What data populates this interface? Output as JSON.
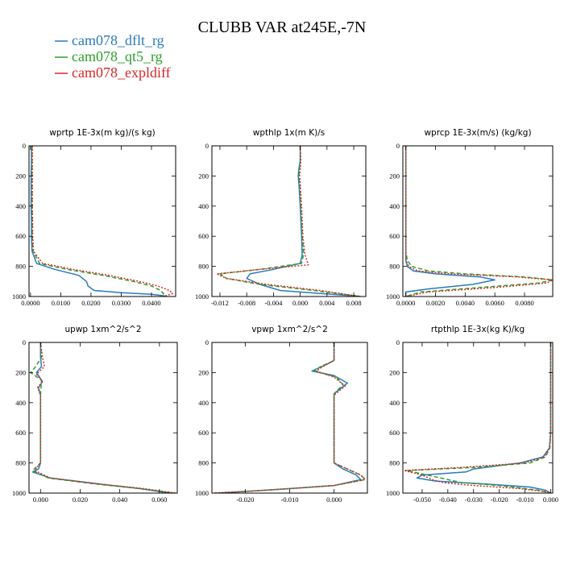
{
  "figure": {
    "title": "CLUBB VAR at245E,-7N",
    "legend": [
      {
        "name": "cam078_dflt_rg",
        "color": "#2b7bb9",
        "dash": "solid"
      },
      {
        "name": "cam078_qt5_rg",
        "color": "#2ca02c",
        "dash": "dashed"
      },
      {
        "name": "cam078_expldiff",
        "color": "#d62728",
        "dash": "dotted"
      }
    ]
  },
  "chart_data": [
    {
      "type": "line",
      "title": "wprtp   1E-3x(m kg)/(s kg)",
      "xlim": [
        -0.0005,
        0.048
      ],
      "ylim": [
        0,
        1000
      ],
      "y_inverted": true,
      "xticks": [
        0.0,
        0.01,
        0.02,
        0.03,
        0.04
      ],
      "xtick_labels": [
        "0.0000",
        "0.0100",
        "0.0200",
        "0.0300",
        "0.0400"
      ],
      "yticks": [
        0,
        200,
        400,
        600,
        800,
        1000
      ],
      "ytick_labels": [
        "0",
        "200",
        "400",
        "600",
        "800",
        "1000"
      ],
      "series": [
        {
          "name": "cam078_dflt_rg",
          "x": [
            0.0003,
            0.0003,
            0.0002,
            0.0002,
            0.0002,
            0.0003,
            0.0003,
            0.0005,
            0.002,
            0.008,
            0.016,
            0.0185,
            0.019,
            0.021,
            0.03,
            0.04,
            0.044,
            0.045
          ],
          "y": [
            0,
            100,
            200,
            300,
            400,
            500,
            600,
            700,
            780,
            820,
            860,
            900,
            930,
            960,
            975,
            985,
            995,
            1000
          ]
        },
        {
          "name": "cam078_qt5_rg",
          "x": [
            0.0005,
            0.0005,
            0.0005,
            0.0005,
            0.0005,
            0.0006,
            0.0006,
            0.0008,
            0.003,
            0.012,
            0.024,
            0.034,
            0.04,
            0.043,
            0.044,
            0.043
          ],
          "y": [
            0,
            100,
            200,
            300,
            400,
            500,
            600,
            700,
            780,
            820,
            860,
            900,
            930,
            960,
            980,
            1000
          ]
        },
        {
          "name": "cam078_expldiff",
          "x": [
            0.0006,
            0.0006,
            0.0006,
            0.0006,
            0.0006,
            0.0007,
            0.0007,
            0.001,
            0.004,
            0.014,
            0.026,
            0.036,
            0.042,
            0.046,
            0.047,
            0.044
          ],
          "y": [
            0,
            100,
            200,
            300,
            400,
            500,
            600,
            700,
            780,
            820,
            860,
            900,
            930,
            960,
            980,
            1000
          ]
        }
      ]
    },
    {
      "type": "line",
      "title": "wpthlp   1x(m K)/s",
      "xlim": [
        -0.0132,
        0.0098
      ],
      "ylim": [
        0,
        1000
      ],
      "y_inverted": true,
      "xticks": [
        -0.012,
        -0.008,
        -0.004,
        0.0,
        0.004,
        0.008
      ],
      "xtick_labels": [
        "-0.012",
        "-0.008",
        "-0.004",
        "0.000",
        "0.004",
        "0.008"
      ],
      "yticks": [
        0,
        200,
        400,
        600,
        800,
        1000
      ],
      "ytick_labels": [
        "0",
        "200",
        "400",
        "600",
        "800",
        "1000"
      ],
      "series": [
        {
          "name": "cam078_dflt_rg",
          "x": [
            0.0,
            0.0,
            -0.0002,
            -0.0003,
            -0.0002,
            0.0,
            0.0002,
            0.0003,
            0.0,
            -0.004,
            -0.0075,
            -0.008,
            -0.006,
            -0.003,
            0.003,
            0.008,
            0.009
          ],
          "y": [
            0,
            100,
            150,
            200,
            250,
            400,
            600,
            720,
            780,
            820,
            850,
            880,
            920,
            960,
            980,
            995,
            1000
          ]
        },
        {
          "name": "cam078_qt5_rg",
          "x": [
            0.0,
            0.0,
            -0.0001,
            -0.0002,
            -0.0001,
            0.0001,
            0.0003,
            0.0005,
            0.0002,
            -0.006,
            -0.012,
            -0.011,
            -0.006,
            0.002,
            0.009
          ],
          "y": [
            0,
            100,
            150,
            200,
            250,
            400,
            600,
            720,
            780,
            820,
            850,
            880,
            920,
            960,
            1000
          ]
        },
        {
          "name": "cam078_expldiff",
          "x": [
            0.0,
            0.0001,
            0.0,
            -0.0001,
            0.0,
            0.0002,
            0.0004,
            0.0007,
            0.0012,
            -0.006,
            -0.0125,
            -0.011,
            -0.005,
            0.003,
            0.009
          ],
          "y": [
            0,
            100,
            150,
            200,
            250,
            400,
            600,
            720,
            790,
            820,
            850,
            880,
            920,
            960,
            1000
          ]
        }
      ]
    },
    {
      "type": "line",
      "title": "wprcp   1E-3x(m/s) (kg/kg)",
      "xlim": [
        -0.0002,
        0.0099
      ],
      "ylim": [
        0,
        1000
      ],
      "y_inverted": true,
      "xticks": [
        0.0,
        0.002,
        0.004,
        0.006,
        0.008
      ],
      "xtick_labels": [
        "0.0000",
        "0.0020",
        "0.0040",
        "0.0060",
        "0.0080"
      ],
      "yticks": [
        0,
        200,
        400,
        600,
        800,
        1000
      ],
      "ytick_labels": [
        "0",
        "200",
        "400",
        "600",
        "800",
        "1000"
      ],
      "series": [
        {
          "name": "cam078_dflt_rg",
          "x": [
            0.0,
            0.0,
            0.0,
            0.0,
            0.0,
            0.0,
            0.0001,
            0.0005,
            0.002,
            0.005,
            0.006,
            0.0045,
            0.0015,
            0.0,
            0.0
          ],
          "y": [
            0,
            100,
            300,
            500,
            700,
            760,
            800,
            830,
            850,
            870,
            890,
            920,
            950,
            970,
            1000
          ]
        },
        {
          "name": "cam078_qt5_rg",
          "x": [
            0.0,
            0.0,
            0.0,
            0.0,
            0.0,
            0.0001,
            0.0004,
            0.0015,
            0.004,
            0.008,
            0.0099,
            0.009,
            0.005,
            0.001,
            0.0
          ],
          "y": [
            0,
            100,
            300,
            500,
            700,
            760,
            800,
            830,
            850,
            870,
            890,
            910,
            940,
            970,
            1000
          ]
        },
        {
          "name": "cam078_expldiff",
          "x": [
            0.0,
            0.0,
            0.0,
            0.0,
            0.0,
            0.0,
            0.0002,
            0.0008,
            0.003,
            0.0075,
            0.0099,
            0.0095,
            0.006,
            0.0015,
            0.0
          ],
          "y": [
            0,
            100,
            300,
            500,
            700,
            760,
            800,
            830,
            850,
            870,
            890,
            910,
            940,
            970,
            1000
          ]
        }
      ]
    },
    {
      "type": "line",
      "title": "upwp   1xm^2/s^2",
      "xlim": [
        -0.0058,
        0.069
      ],
      "ylim": [
        0,
        1000
      ],
      "y_inverted": true,
      "xticks": [
        0.0,
        0.02,
        0.04,
        0.06
      ],
      "xtick_labels": [
        "0.000",
        "0.020",
        "0.040",
        "0.060"
      ],
      "yticks": [
        0,
        200,
        400,
        600,
        800,
        1000
      ],
      "ytick_labels": [
        "0",
        "200",
        "400",
        "600",
        "800",
        "1000"
      ],
      "series": [
        {
          "name": "cam078_dflt_rg",
          "x": [
            0.0,
            0.0,
            0.0005,
            -0.002,
            0.001,
            -0.001,
            0.0,
            0.0,
            0.0,
            0.0,
            -0.001,
            -0.004,
            0.005,
            0.03,
            0.05,
            0.06,
            0.065
          ],
          "y": [
            0,
            100,
            160,
            200,
            260,
            300,
            350,
            500,
            700,
            800,
            840,
            860,
            900,
            940,
            970,
            990,
            1000
          ]
        },
        {
          "name": "cam078_qt5_rg",
          "x": [
            0.0,
            0.0005,
            -0.003,
            -0.005,
            0.0005,
            0.0,
            0.0,
            0.0,
            0.0,
            -0.004,
            0.004,
            0.028,
            0.05,
            0.068
          ],
          "y": [
            0,
            100,
            170,
            200,
            250,
            350,
            500,
            700,
            800,
            850,
            900,
            940,
            970,
            1000
          ]
        },
        {
          "name": "cam078_expldiff",
          "x": [
            0.0,
            0.001,
            0.002,
            -0.002,
            0.001,
            -0.0015,
            0.0,
            0.0,
            0.0,
            0.0,
            -0.003,
            0.005,
            0.03,
            0.052,
            0.068
          ],
          "y": [
            0,
            100,
            160,
            210,
            260,
            300,
            350,
            500,
            700,
            800,
            850,
            900,
            940,
            970,
            1000
          ]
        }
      ]
    },
    {
      "type": "line",
      "title": "vpwp   1xm^2/s^2",
      "xlim": [
        -0.0275,
        0.0075
      ],
      "ylim": [
        0,
        1000
      ],
      "y_inverted": true,
      "xticks": [
        -0.02,
        -0.01,
        0.0
      ],
      "xtick_labels": [
        "-0.020",
        "-0.010",
        "0.000"
      ],
      "yticks": [
        0,
        200,
        400,
        600,
        800,
        1000
      ],
      "ytick_labels": [
        "0",
        "200",
        "400",
        "600",
        "800",
        "1000"
      ],
      "series": [
        {
          "name": "cam078_dflt_rg",
          "x": [
            0.0,
            0.0,
            -0.002,
            -0.005,
            0.0,
            0.003,
            0.0,
            0.0,
            0.0,
            0.0,
            0.002,
            0.005,
            0.006,
            0.0,
            -0.015,
            -0.026
          ],
          "y": [
            0,
            120,
            150,
            190,
            220,
            270,
            340,
            500,
            700,
            800,
            840,
            880,
            910,
            950,
            980,
            1000
          ]
        },
        {
          "name": "cam078_qt5_rg",
          "x": [
            0.0,
            0.0,
            -0.003,
            -0.0045,
            0.0005,
            0.002,
            0.0,
            0.0,
            0.0,
            0.0,
            0.003,
            0.006,
            0.007,
            0.0,
            -0.015,
            -0.027
          ],
          "y": [
            0,
            120,
            160,
            190,
            230,
            280,
            340,
            500,
            700,
            800,
            840,
            880,
            910,
            950,
            980,
            1000
          ]
        },
        {
          "name": "cam078_expldiff",
          "x": [
            0.0,
            0.0,
            -0.0025,
            -0.004,
            0.0,
            0.0025,
            0.0,
            0.0,
            0.0,
            0.0,
            0.003,
            0.006,
            0.007,
            0.0,
            -0.015,
            -0.027
          ],
          "y": [
            0,
            120,
            160,
            190,
            230,
            290,
            350,
            500,
            700,
            800,
            840,
            880,
            910,
            950,
            980,
            1000
          ]
        }
      ]
    },
    {
      "type": "line",
      "title": "rtpthlp   1E-3x(kg K)/kg",
      "xlim": [
        -0.0575,
        0.0008
      ],
      "ylim": [
        0,
        1000
      ],
      "y_inverted": true,
      "xticks": [
        -0.05,
        -0.04,
        -0.03,
        -0.02,
        -0.01,
        0.0
      ],
      "xtick_labels": [
        "-0.050",
        "-0.040",
        "-0.030",
        "-0.020",
        "-0.010",
        "0.000"
      ],
      "yticks": [
        0,
        200,
        400,
        600,
        800,
        1000
      ],
      "ytick_labels": [
        "0",
        "200",
        "400",
        "600",
        "800",
        "1000"
      ],
      "series": [
        {
          "name": "cam078_dflt_rg",
          "x": [
            0.0,
            0.0,
            0.0,
            0.0,
            -0.0005,
            -0.003,
            -0.012,
            -0.03,
            -0.033,
            -0.05,
            -0.052,
            -0.045,
            -0.025,
            -0.008,
            -0.002,
            0.0
          ],
          "y": [
            0,
            200,
            400,
            600,
            700,
            760,
            800,
            840,
            860,
            880,
            900,
            920,
            940,
            960,
            980,
            1000
          ]
        },
        {
          "name": "cam078_qt5_rg",
          "x": [
            0.0,
            0.0,
            0.0,
            0.0,
            -0.0003,
            -0.002,
            -0.008,
            -0.03,
            -0.056,
            -0.048,
            -0.04,
            -0.035,
            -0.02,
            -0.005,
            0.0
          ],
          "y": [
            0,
            200,
            400,
            600,
            700,
            760,
            800,
            830,
            850,
            880,
            910,
            930,
            950,
            980,
            1000
          ]
        },
        {
          "name": "cam078_expldiff",
          "x": [
            0.0,
            0.0,
            0.0,
            0.0,
            -0.0004,
            -0.0025,
            -0.01,
            -0.035,
            -0.057,
            -0.05,
            -0.046,
            -0.042,
            -0.03,
            -0.012,
            -0.002,
            0.0
          ],
          "y": [
            0,
            200,
            400,
            600,
            700,
            760,
            800,
            830,
            850,
            880,
            910,
            930,
            950,
            970,
            990,
            1000
          ]
        }
      ]
    }
  ]
}
